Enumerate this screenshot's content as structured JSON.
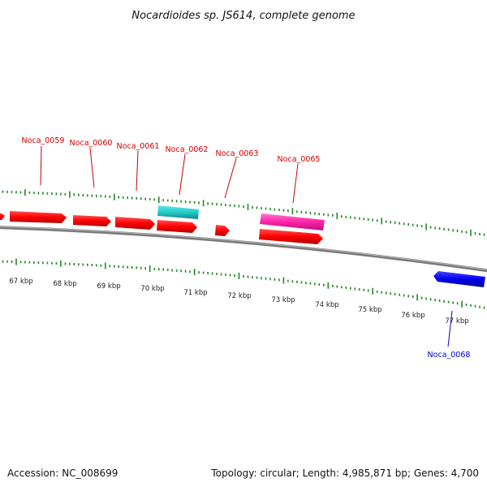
{
  "title": "Nocardioides sp. JS614, complete genome",
  "footer": {
    "accession": "Accession: NC_008699",
    "topology": "Topology: circular; Length: 4,985,871 bp; Genes: 4,700"
  },
  "colors": {
    "forward_cds": "#ff0000",
    "reverse_cds": "#0000ee",
    "rna_cyan": "#22cccc",
    "magenta": "#ff22aa",
    "red_label": "#cc0000",
    "blue_label": "#0000cc",
    "ticks": "#228822",
    "backbone": "#808080"
  },
  "scale_labels": [
    "67 kbp",
    "68 kbp",
    "69 kbp",
    "70 kbp",
    "71 kbp",
    "72 kbp",
    "73 kbp",
    "74 kbp",
    "75 kbp",
    "76 kbp",
    "77 kbp"
  ],
  "gene_labels": [
    {
      "text": "Noca_0059",
      "color": "#cc0000"
    },
    {
      "text": "Noca_0060",
      "color": "#cc0000"
    },
    {
      "text": "Noca_0061",
      "color": "#cc0000"
    },
    {
      "text": "Noca_0062",
      "color": "#cc0000"
    },
    {
      "text": "Noca_0063",
      "color": "#cc0000"
    },
    {
      "text": "Noca_0065",
      "color": "#cc0000"
    },
    {
      "text": "Noca_0068",
      "color": "#0000cc"
    }
  ]
}
